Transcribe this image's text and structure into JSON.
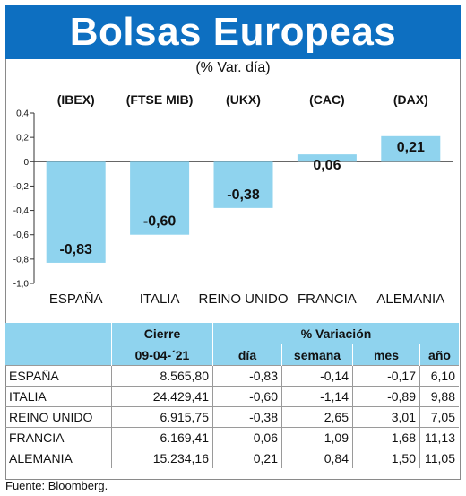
{
  "title": "Bolsas Europeas",
  "subtitle": "(% Var. día)",
  "chart_data": {
    "type": "bar",
    "categories": [
      "ESPAÑA",
      "ITALIA",
      "REINO UNIDO",
      "FRANCIA",
      "ALEMANIA"
    ],
    "indices": [
      "(IBEX)",
      "(FTSE MIB)",
      "(UKX)",
      "(CAC)",
      "(DAX)"
    ],
    "values": [
      -0.83,
      -0.6,
      -0.38,
      0.06,
      0.21
    ],
    "value_labels": [
      "-0,83",
      "-0,60",
      "-0,38",
      "0,06",
      "0,21"
    ],
    "ylim": [
      -1.0,
      0.4
    ],
    "yticks": [
      0.4,
      0.2,
      0,
      -0.2,
      -0.4,
      -0.6,
      -0.8,
      -1.0
    ],
    "ytick_labels": [
      "0,4",
      "0,2",
      "0",
      "-0,2",
      "-0,4",
      "-0,6",
      "-0,8",
      "-1,0"
    ],
    "bar_color": "#8fd3ee"
  },
  "table": {
    "header_cierre": "Cierre",
    "header_date": "09-04-´21",
    "header_variacion": "% Variación",
    "cols": [
      "día",
      "semana",
      "mes",
      "año"
    ],
    "rows": [
      {
        "country": "ESPAÑA",
        "cierre": "8.565,80",
        "dia": "-0,83",
        "semana": "-0,14",
        "mes": "-0,17",
        "ano": "6,10"
      },
      {
        "country": "ITALIA",
        "cierre": "24.429,41",
        "dia": "-0,60",
        "semana": "-1,14",
        "mes": "-0,89",
        "ano": "9,88"
      },
      {
        "country": "REINO UNIDO",
        "cierre": "6.915,75",
        "dia": "-0,38",
        "semana": "2,65",
        "mes": "3,01",
        "ano": "7,05"
      },
      {
        "country": "FRANCIA",
        "cierre": "6.169,41",
        "dia": "0,06",
        "semana": "1,09",
        "mes": "1,68",
        "ano": "11,13"
      },
      {
        "country": "ALEMANIA",
        "cierre": "15.234,16",
        "dia": "0,21",
        "semana": "0,84",
        "mes": "1,50",
        "ano": "11,05"
      }
    ]
  },
  "source": "Fuente: Bloomberg.",
  "colors": {
    "title_bg": "#0d6fc1",
    "bar": "#8fd3ee",
    "table_header": "#8fd3ee"
  }
}
